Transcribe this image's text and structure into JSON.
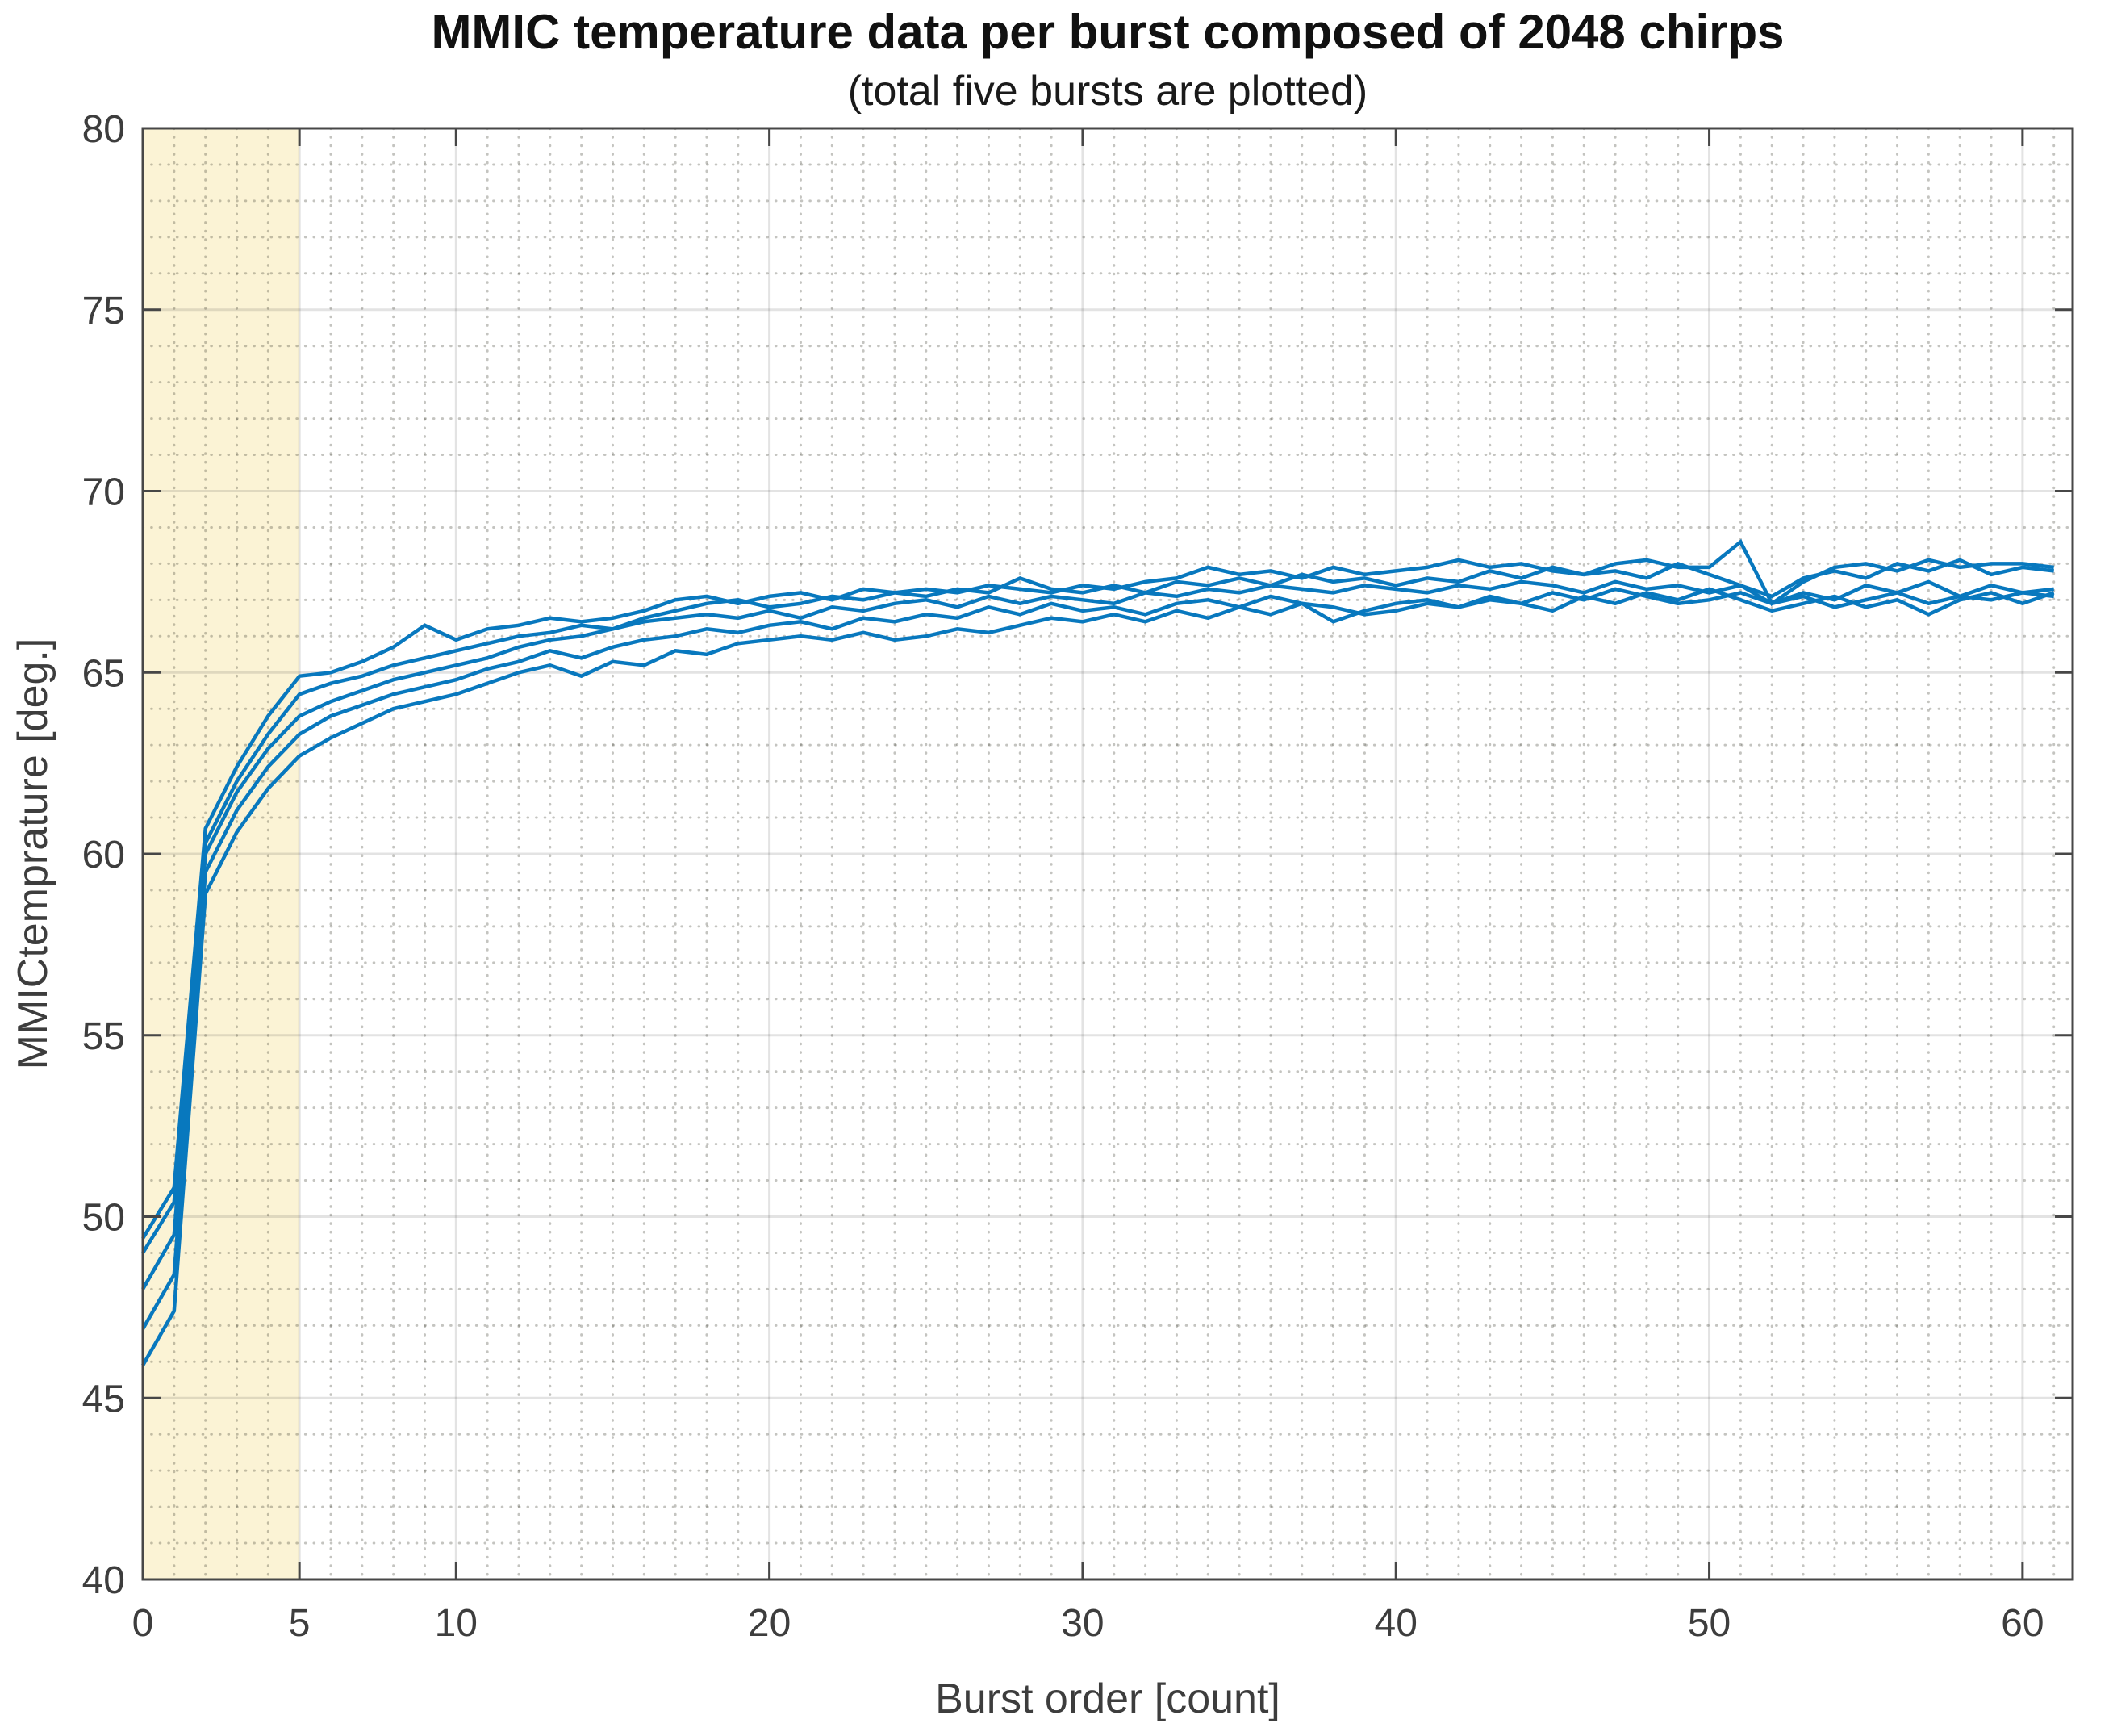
{
  "page": {
    "background": "#ffffff"
  },
  "chart_data": {
    "type": "line",
    "title": "MMIC temperature data per burst composed of 2048 chirps",
    "subtitle": "(total five bursts are plotted)",
    "xlabel": "Burst order [count]",
    "ylabel": "MMICtemprature [deg.]",
    "xlim": [
      0,
      61.6
    ],
    "ylim": [
      40,
      80
    ],
    "xticks": [
      0,
      5,
      10,
      20,
      30,
      40,
      50,
      60
    ],
    "yticks": [
      40,
      45,
      50,
      55,
      60,
      65,
      70,
      75,
      80
    ],
    "grid": true,
    "minor_grid": true,
    "legend_position": "none",
    "line_color": "#0878be",
    "axis_color": "#474747",
    "major_grid_color": "rgba(38,38,38,0.13)",
    "minor_grid_color": "rgba(60,58,45,0.30)",
    "highlight_region": {
      "x_start": 0,
      "x_end": 5,
      "color": "#fbf3d5"
    },
    "x_start": 0,
    "x_step": 1,
    "series": [
      {
        "name": "trace-1",
        "values": [
          49.4,
          50.8,
          60.7,
          62.4,
          63.8,
          64.9,
          65.0,
          65.3,
          65.7,
          66.3,
          65.9,
          66.2,
          66.3,
          66.5,
          66.4,
          66.5,
          66.7,
          67.0,
          67.1,
          66.9,
          67.1,
          67.2,
          67.0,
          67.3,
          67.2,
          67.3,
          67.2,
          67.4,
          67.3,
          67.2,
          67.4,
          67.3,
          67.5,
          67.6,
          67.9,
          67.7,
          67.8,
          67.6,
          67.9,
          67.7,
          67.8,
          67.9,
          68.1,
          67.9,
          68.0,
          67.8,
          67.7,
          68.0,
          68.1,
          67.9,
          67.9,
          68.6,
          66.9,
          67.5,
          67.9,
          68.0,
          67.8,
          68.1,
          67.9,
          68.0,
          68.0,
          67.9
        ]
      },
      {
        "name": "trace-2",
        "values": [
          49.0,
          50.4,
          60.3,
          62.0,
          63.3,
          64.4,
          64.7,
          64.9,
          65.2,
          65.4,
          65.6,
          65.8,
          66.0,
          66.1,
          66.3,
          66.2,
          66.5,
          66.7,
          66.9,
          67.0,
          66.8,
          66.9,
          67.1,
          67.0,
          67.2,
          67.1,
          67.3,
          67.2,
          67.6,
          67.3,
          67.2,
          67.4,
          67.2,
          67.5,
          67.4,
          67.6,
          67.4,
          67.7,
          67.5,
          67.6,
          67.4,
          67.6,
          67.5,
          67.8,
          67.6,
          67.9,
          67.7,
          67.8,
          67.6,
          68.0,
          67.7,
          67.4,
          67.1,
          67.6,
          67.8,
          67.6,
          68.0,
          67.8,
          68.1,
          67.7,
          67.9,
          67.8
        ]
      },
      {
        "name": "trace-3",
        "values": [
          48.0,
          49.5,
          60.0,
          61.7,
          62.9,
          63.8,
          64.2,
          64.5,
          64.8,
          65.0,
          65.2,
          65.4,
          65.7,
          65.9,
          66.0,
          66.2,
          66.4,
          66.5,
          66.6,
          66.5,
          66.7,
          66.5,
          66.8,
          66.7,
          66.9,
          67.0,
          66.8,
          67.1,
          66.9,
          67.1,
          67.0,
          66.9,
          67.2,
          67.1,
          67.3,
          67.2,
          67.4,
          67.3,
          67.2,
          67.4,
          67.3,
          67.2,
          67.4,
          67.3,
          67.5,
          67.4,
          67.2,
          67.5,
          67.3,
          67.4,
          67.2,
          67.4,
          66.9,
          67.2,
          67.0,
          67.4,
          67.2,
          67.5,
          67.1,
          67.4,
          67.2,
          67.3
        ]
      },
      {
        "name": "trace-4",
        "values": [
          46.9,
          48.4,
          59.5,
          61.2,
          62.4,
          63.3,
          63.8,
          64.1,
          64.4,
          64.6,
          64.8,
          65.1,
          65.3,
          65.6,
          65.4,
          65.7,
          65.9,
          66.0,
          66.2,
          66.1,
          66.3,
          66.4,
          66.2,
          66.5,
          66.4,
          66.6,
          66.5,
          66.8,
          66.6,
          66.9,
          66.7,
          66.8,
          66.6,
          66.9,
          67.0,
          66.8,
          67.1,
          66.9,
          66.4,
          66.7,
          66.9,
          67.0,
          66.8,
          67.1,
          66.9,
          67.2,
          67.0,
          67.3,
          67.1,
          66.9,
          67.0,
          67.2,
          66.9,
          67.1,
          66.8,
          67.0,
          67.2,
          66.9,
          67.1,
          67.0,
          67.2,
          67.1
        ]
      },
      {
        "name": "trace-5",
        "values": [
          45.9,
          47.4,
          58.9,
          60.6,
          61.8,
          62.7,
          63.2,
          63.6,
          64.0,
          64.2,
          64.4,
          64.7,
          65.0,
          65.2,
          64.9,
          65.3,
          65.2,
          65.6,
          65.5,
          65.8,
          65.9,
          66.0,
          65.9,
          66.1,
          65.9,
          66.0,
          66.2,
          66.1,
          66.3,
          66.5,
          66.4,
          66.6,
          66.4,
          66.7,
          66.5,
          66.8,
          66.6,
          66.9,
          66.8,
          66.6,
          66.7,
          66.9,
          66.8,
          67.0,
          66.9,
          66.7,
          67.1,
          66.9,
          67.2,
          67.0,
          67.3,
          67.0,
          66.7,
          66.9,
          67.1,
          66.8,
          67.0,
          66.6,
          67.0,
          67.2,
          66.9,
          67.2
        ]
      }
    ]
  }
}
